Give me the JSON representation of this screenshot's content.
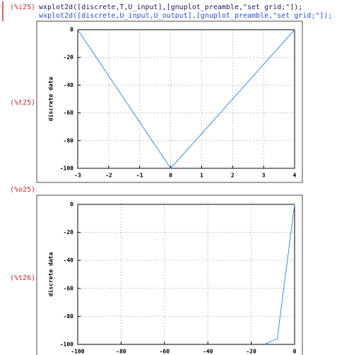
{
  "input": {
    "label": "(%i25)",
    "lines": [
      "wxplot2d([discrete,T,U_input],[gnuplot_preamble,\"set grid;\"]);",
      "wxplot2d([discrete,U_input,U_output],[gnuplot_preamble,\"set grid;\"]);"
    ]
  },
  "outputs": [
    {
      "label": "(%t25)"
    },
    {
      "label": "(%o25)"
    },
    {
      "label": "(%t26)"
    }
  ],
  "chart_data": [
    {
      "type": "line",
      "ylabel": "discrete data",
      "x": [
        -3,
        0,
        4
      ],
      "series": [
        {
          "color": "#3c8ce6",
          "values": [
            0,
            -100,
            0
          ]
        }
      ],
      "xlim": [
        -3,
        4
      ],
      "ylim": [
        -100,
        0
      ],
      "xticks": [
        -3,
        -2,
        -1,
        0,
        1,
        2,
        3,
        4
      ],
      "yticks": [
        -100,
        -80,
        -60,
        -40,
        -20,
        0
      ],
      "grid": true
    },
    {
      "type": "line",
      "ylabel": "discrete data",
      "x": [
        -14,
        -8,
        0
      ],
      "series": [
        {
          "color": "#3c8ce6",
          "values": [
            -100,
            -96,
            0
          ]
        }
      ],
      "xlim": [
        -100,
        0
      ],
      "ylim": [
        -100,
        0
      ],
      "xticks": [
        -100,
        -80,
        -60,
        -40,
        -20,
        0
      ],
      "yticks": [
        -100,
        -80,
        -60,
        -40,
        -20,
        0
      ],
      "grid": true
    }
  ]
}
